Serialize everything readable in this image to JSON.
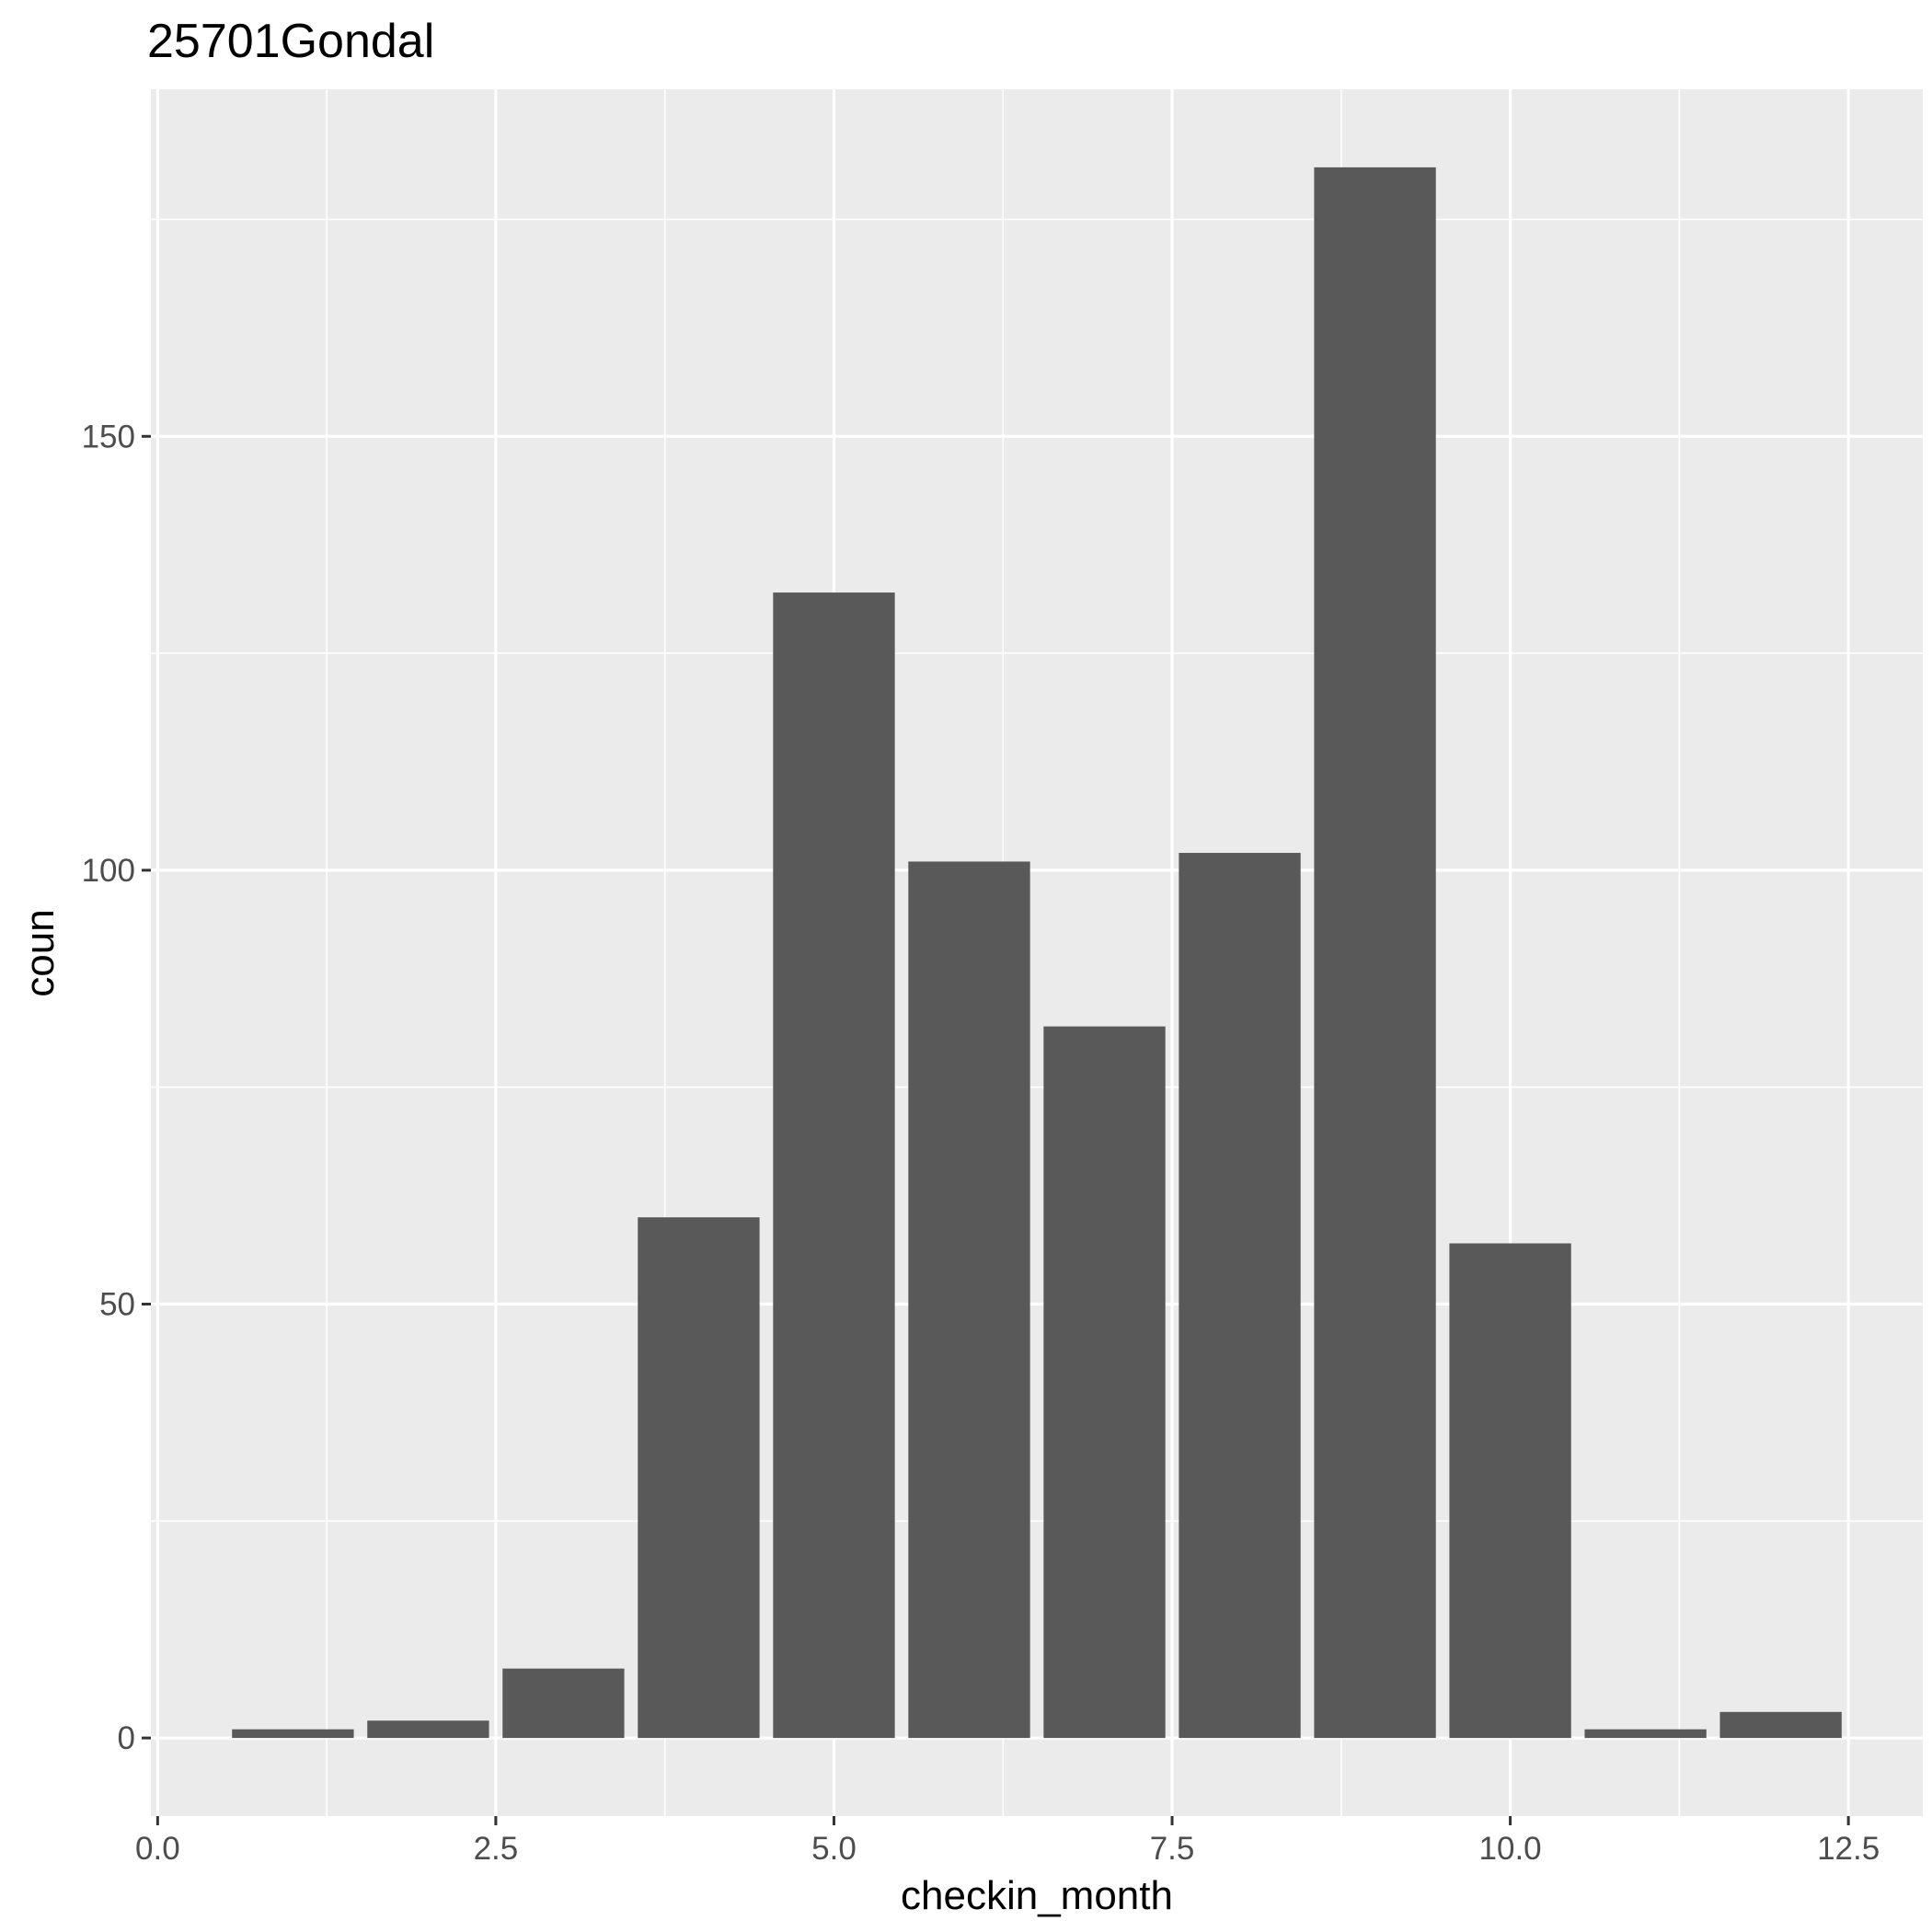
{
  "chart_data": {
    "type": "bar",
    "title": "25701Gondal",
    "xlabel": "checkin_month",
    "ylabel": "coun",
    "x": [
      1,
      2,
      3,
      4,
      5,
      6,
      7,
      8,
      9,
      10,
      11,
      12
    ],
    "values": [
      1,
      2,
      8,
      60,
      132,
      101,
      82,
      102,
      181,
      57,
      1,
      3
    ],
    "bar_width": 0.9,
    "xlim": [
      -0.05,
      13.05
    ],
    "ylim": [
      -9,
      190
    ],
    "xticks": [
      0,
      2.5,
      5,
      7.5,
      10,
      12.5
    ],
    "xtick_labels": [
      "0.0",
      "2.5",
      "5.0",
      "7.5",
      "10.0",
      "12.5"
    ],
    "yticks": [
      0,
      50,
      100,
      150
    ],
    "ytick_labels": [
      "0",
      "50",
      "100",
      "150"
    ],
    "grid": true,
    "colors": {
      "bar": "#595959",
      "panel": "#ebebeb",
      "grid": "#ffffff",
      "tick_text": "#4d4d4d",
      "tick_mark": "#333333"
    }
  }
}
